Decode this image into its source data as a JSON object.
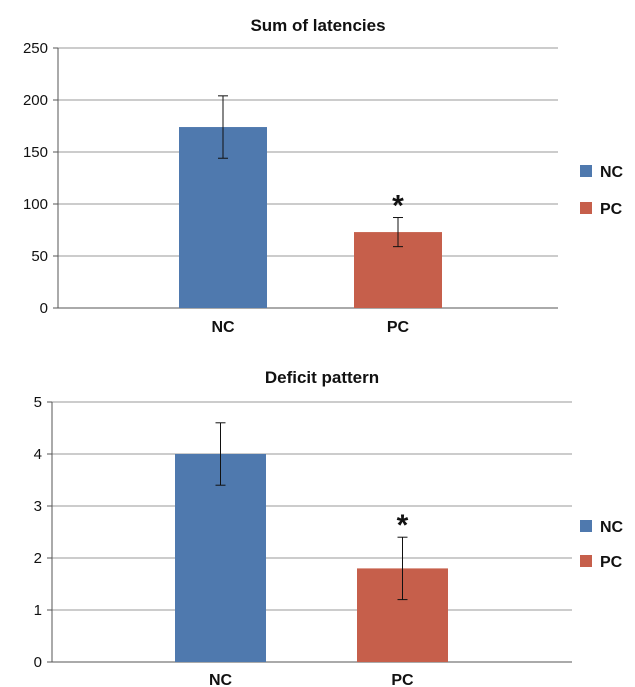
{
  "chart_data": [
    {
      "type": "bar",
      "title": "Sum of latencies",
      "categories": [
        "NC",
        "PC"
      ],
      "values": [
        174,
        73
      ],
      "errors": [
        30,
        14
      ],
      "colors": [
        "#4F79AE",
        "#C65F4B"
      ],
      "ylim": [
        0,
        250
      ],
      "yticks": [
        "0",
        "50",
        "100",
        "150",
        "200",
        "250"
      ],
      "grid": true,
      "significance": [
        "",
        "*"
      ],
      "legend": [
        "NC",
        "PC"
      ],
      "legend_position": "right"
    },
    {
      "type": "bar",
      "title": "Deficit pattern",
      "categories": [
        "NC",
        "PC"
      ],
      "values": [
        4.0,
        1.8
      ],
      "errors": [
        0.6,
        0.6
      ],
      "colors": [
        "#4F79AE",
        "#C65F4B"
      ],
      "ylim": [
        0,
        5
      ],
      "yticks": [
        "0",
        "1",
        "2",
        "3",
        "4",
        "5"
      ],
      "grid": true,
      "significance": [
        "",
        "*"
      ],
      "legend": [
        "NC",
        "PC"
      ],
      "legend_position": "right"
    }
  ]
}
